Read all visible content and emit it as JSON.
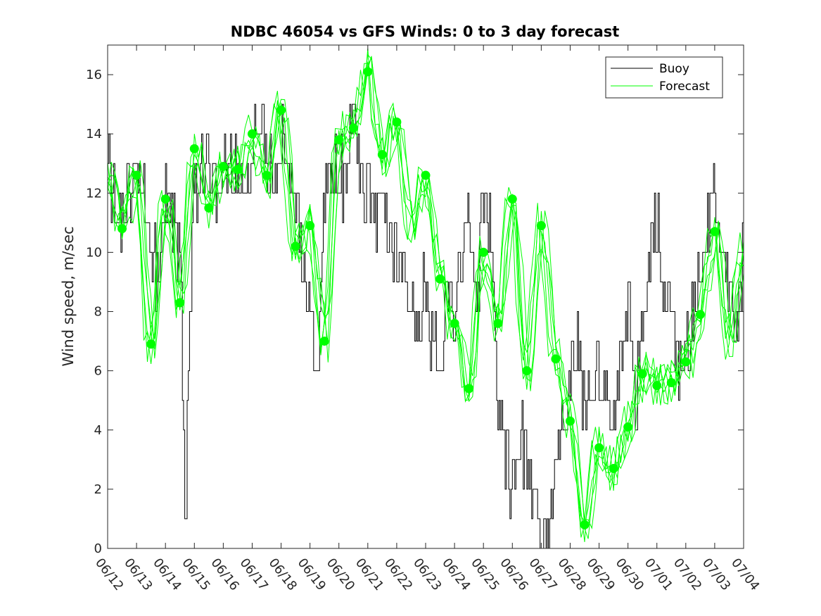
{
  "chart_data": {
    "type": "line",
    "title": "NDBC 46054 vs GFS Winds: 0 to 3 day forecast",
    "xlabel": "",
    "ylabel": "Wind speed, m/sec",
    "xlim": [
      "06/12",
      "07/04"
    ],
    "ylim": [
      0,
      17
    ],
    "yticks": [
      0,
      2,
      4,
      6,
      8,
      10,
      12,
      14,
      16
    ],
    "xticks": [
      "06/12",
      "06/13",
      "06/14",
      "06/15",
      "06/16",
      "06/17",
      "06/18",
      "06/19",
      "06/20",
      "06/21",
      "06/22",
      "06/23",
      "06/24",
      "06/25",
      "06/26",
      "06/27",
      "06/28",
      "06/29",
      "06/30",
      "07/01",
      "07/02",
      "07/03",
      "07/04"
    ],
    "grid": false,
    "legend": {
      "position": "top-right",
      "entries": [
        "Buoy",
        "Forecast"
      ]
    },
    "colors": {
      "buoy": "#000000",
      "forecast": "#00ff00"
    },
    "series": [
      {
        "name": "Buoy",
        "type": "step",
        "x_days": [
          0,
          0.25,
          0.5,
          0.75,
          1,
          1.25,
          1.5,
          1.75,
          2,
          2.25,
          2.5,
          2.6,
          2.7,
          2.8,
          3,
          3.25,
          3.5,
          3.75,
          4,
          4.25,
          4.5,
          4.75,
          5,
          5.25,
          5.5,
          5.75,
          6,
          6.25,
          6.5,
          6.75,
          7,
          7.25,
          7.5,
          7.75,
          8,
          8.25,
          8.5,
          8.75,
          9,
          9.25,
          9.5,
          9.75,
          10,
          10.25,
          10.5,
          10.75,
          11,
          11.25,
          11.5,
          11.75,
          12,
          12.25,
          12.5,
          12.75,
          13,
          13.25,
          13.5,
          13.75,
          14,
          14.25,
          14.5,
          14.75,
          15,
          15.25,
          15.5,
          15.75,
          16,
          16.25,
          16.5,
          16.75,
          17,
          17.25,
          17.5,
          17.75,
          18,
          18.25,
          18.5,
          18.75,
          19,
          19.25,
          19.5,
          19.75,
          20,
          20.25,
          20.5,
          20.75,
          21,
          21.25,
          21.5,
          21.75,
          22
        ],
        "values": [
          13,
          12,
          11,
          12,
          13,
          12,
          10,
          9,
          12,
          11,
          10,
          4,
          1,
          7,
          12,
          13,
          13,
          12,
          13,
          13,
          13,
          12,
          14,
          14,
          13,
          13,
          14,
          13,
          12,
          9,
          8,
          6,
          12,
          13,
          13,
          12,
          15,
          13,
          12,
          11,
          12,
          11,
          10,
          9,
          8,
          7,
          9,
          7,
          6,
          9,
          8,
          10,
          11,
          8,
          12,
          11,
          5,
          3,
          2,
          4,
          3,
          2,
          0,
          1,
          3,
          4,
          6,
          7,
          5,
          4,
          6,
          5,
          4,
          7,
          8,
          5,
          7,
          10,
          11,
          9,
          8,
          6,
          7,
          8,
          9,
          11,
          12,
          10,
          9,
          8,
          10
        ],
        "peak_values": [
          16,
          13,
          14,
          13,
          13,
          11,
          10,
          13,
          11,
          16,
          14,
          13,
          14,
          14,
          15,
          15,
          15,
          14,
          14,
          14,
          15,
          14,
          14,
          14,
          14,
          14,
          13,
          11,
          12,
          10,
          11,
          11,
          11,
          12,
          12,
          13,
          12,
          11,
          10,
          11,
          7,
          5,
          5,
          4,
          6,
          7,
          6,
          7,
          7,
          8,
          9,
          10,
          11,
          11,
          10
        ]
      },
      {
        "name": "Forecast",
        "type": "line-ensemble",
        "values_note_free": true,
        "x_days": [
          0,
          0.5,
          1,
          1.5,
          2,
          2.5,
          3,
          3.5,
          4,
          4.5,
          5,
          5.5,
          6,
          6.5,
          7,
          7.5,
          8,
          8.5,
          9,
          9.5,
          10,
          10.5,
          11,
          11.5,
          12,
          12.5,
          13,
          13.5,
          14,
          14.5,
          15,
          15.5,
          16,
          16.5,
          17,
          17.5,
          18,
          18.5,
          19,
          19.5,
          20,
          20.5,
          21,
          21.5,
          22
        ],
        "values": [
          12.5,
          10.8,
          12.6,
          6.9,
          11.8,
          8.3,
          13.5,
          11.5,
          12.9,
          12.8,
          14.0,
          12.6,
          14.8,
          10.2,
          10.9,
          7.0,
          13.8,
          14.2,
          16.1,
          13.3,
          14.4,
          11.0,
          12.6,
          9.1,
          7.6,
          5.4,
          10.0,
          7.6,
          11.8,
          6.0,
          10.9,
          6.4,
          4.3,
          0.8,
          3.4,
          2.7,
          4.1,
          5.9,
          5.5,
          5.6,
          6.3,
          7.9,
          10.7,
          7.0,
          9.9
        ]
      },
      {
        "name": "Forecast markers",
        "type": "scatter",
        "x_days": [
          0.5,
          1,
          1.5,
          2,
          2.5,
          3,
          3.5,
          4,
          4.5,
          5,
          5.5,
          6,
          6.5,
          7,
          7.5,
          8,
          8.5,
          9,
          9.5,
          10,
          11,
          11.5,
          12,
          12.5,
          13,
          13.5,
          14,
          14.5,
          15,
          15.5,
          16,
          16.5,
          17,
          17.5,
          18,
          18.5,
          19,
          19.5,
          20,
          20.5,
          21
        ],
        "values": [
          10.8,
          12.6,
          6.9,
          11.8,
          8.3,
          13.5,
          11.5,
          12.9,
          12.8,
          14.0,
          12.6,
          14.8,
          10.2,
          10.9,
          7.0,
          13.8,
          14.2,
          16.1,
          13.3,
          14.4,
          12.6,
          9.1,
          7.6,
          5.4,
          10.0,
          7.6,
          11.8,
          6.0,
          10.9,
          6.4,
          4.3,
          0.8,
          3.4,
          2.7,
          4.1,
          5.9,
          5.5,
          5.6,
          6.3,
          7.9,
          10.7
        ]
      }
    ]
  }
}
